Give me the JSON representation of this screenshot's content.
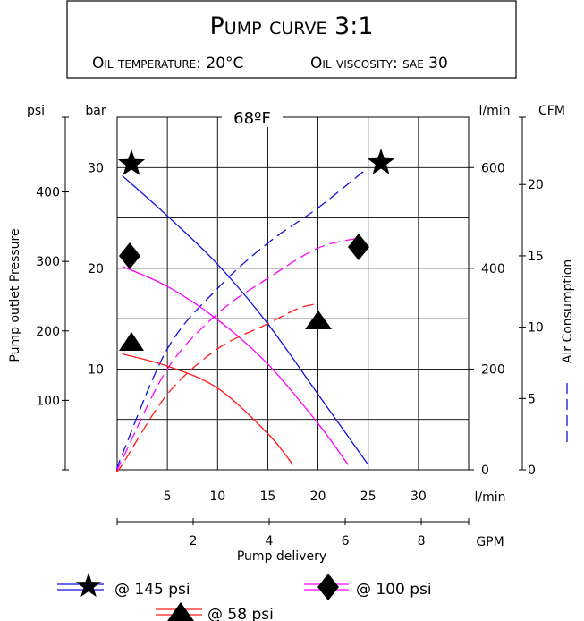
{
  "chart_data": {
    "type": "line",
    "title": "Pump curve 3:1",
    "subtitle_temperature": "Oil temperature: 20°C",
    "subtitle_viscosity": "Oil viscosity: sae 30",
    "inner_label": "68ºF",
    "xlabel": "Pump delivery",
    "ylabel": "Pump outlet Pressure",
    "y2label": "Air Consumption",
    "axes": {
      "x_lmin": {
        "unit": "l/min",
        "ticks": [
          "5",
          "10",
          "15",
          "20",
          "25",
          "30"
        ],
        "range": [
          0,
          35
        ]
      },
      "x_gpm": {
        "unit": "GPM",
        "ticks": [
          "2",
          "4",
          "6",
          "8"
        ]
      },
      "y_bar": {
        "unit": "bar",
        "ticks": [
          "10",
          "20",
          "30"
        ],
        "range": [
          0,
          35
        ]
      },
      "y_psi": {
        "unit": "psi",
        "ticks": [
          "100",
          "200",
          "300",
          "400"
        ]
      },
      "y_lmin_air": {
        "unit": "l/min",
        "ticks": [
          "0",
          "200",
          "400",
          "600"
        ],
        "range": [
          0,
          700
        ]
      },
      "y_cfm": {
        "unit": "CFM",
        "ticks": [
          "0",
          "5",
          "10",
          "15",
          "20"
        ]
      }
    },
    "grid": true,
    "series": [
      {
        "name": "@ 145 psi",
        "color": "#1010e0",
        "marker": "star",
        "pressure_bar": [
          [
            0.5,
            29.2
          ],
          [
            5,
            25.2
          ],
          [
            10,
            20.4
          ],
          [
            15,
            14.5
          ],
          [
            20,
            7.5
          ],
          [
            25,
            0.5
          ]
        ],
        "air_lmin": [
          [
            0.5,
            30
          ],
          [
            5,
            240
          ],
          [
            10,
            360
          ],
          [
            15,
            450
          ],
          [
            20,
            520
          ],
          [
            25,
            600
          ]
        ]
      },
      {
        "name": "@ 100 psi",
        "color": "#ff00ff",
        "marker": "diamond",
        "pressure_bar": [
          [
            0.5,
            20.2
          ],
          [
            5,
            18.2
          ],
          [
            10,
            14.9
          ],
          [
            15,
            10.5
          ],
          [
            20,
            4.6
          ],
          [
            23,
            0.5
          ]
        ],
        "air_lmin": [
          [
            0.5,
            20
          ],
          [
            5,
            200
          ],
          [
            10,
            310
          ],
          [
            15,
            380
          ],
          [
            20,
            440
          ],
          [
            24,
            460
          ]
        ]
      },
      {
        "name": "@ 58 psi",
        "color": "#ff1a1a",
        "marker": "triangle",
        "pressure_bar": [
          [
            0.5,
            11.5
          ],
          [
            5,
            10.3
          ],
          [
            10,
            8.1
          ],
          [
            15,
            3.6
          ],
          [
            17.5,
            0.5
          ]
        ],
        "air_lmin": [
          [
            0.5,
            10
          ],
          [
            5,
            150
          ],
          [
            10,
            240
          ],
          [
            15,
            290
          ],
          [
            18,
            320
          ],
          [
            20,
            330
          ]
        ]
      }
    ]
  }
}
